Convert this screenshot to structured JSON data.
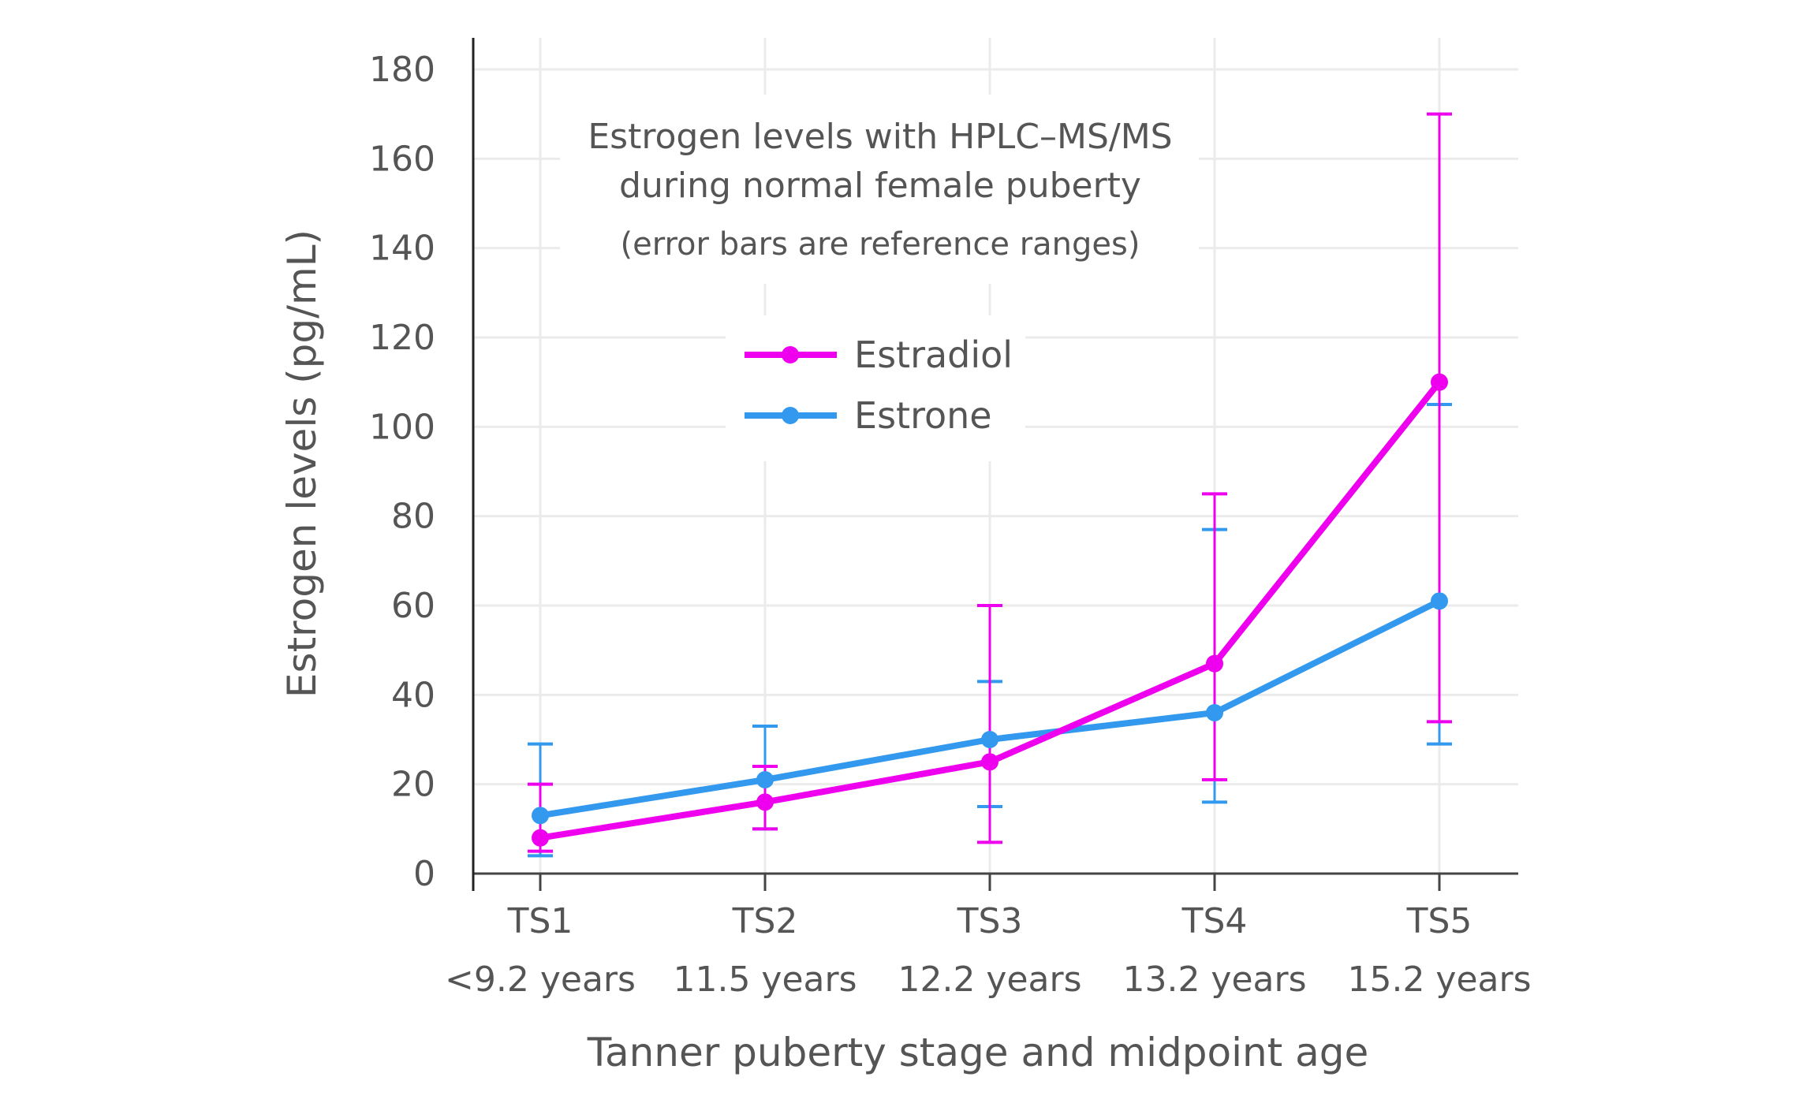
{
  "chart_data": {
    "type": "line",
    "title_lines": [
      "Estrogen levels with HPLC–MS/MS",
      "during normal female puberty"
    ],
    "subtitle": "(error bars are reference ranges)",
    "xlabel": "Tanner puberty stage and midpoint age",
    "ylabel": "Estrogen levels (pg/mL)",
    "categories": [
      "TS1",
      "TS2",
      "TS3",
      "TS4",
      "TS5"
    ],
    "category_sublabels": [
      "<9.2 years",
      "11.5 years",
      "12.2 years",
      "13.2 years",
      "15.2 years"
    ],
    "ylim": [
      0,
      180
    ],
    "yticks": [
      0,
      20,
      40,
      60,
      80,
      100,
      120,
      140,
      160,
      180
    ],
    "grid": true,
    "legend_position": "center-top",
    "series": [
      {
        "name": "Estradiol",
        "color": "#ee00ee",
        "values": [
          8,
          16,
          25,
          47,
          110
        ],
        "error_low": [
          5,
          10,
          7,
          21,
          34
        ],
        "error_high": [
          20,
          24,
          60,
          85,
          170
        ]
      },
      {
        "name": "Estrone",
        "color": "#3399ee",
        "values": [
          13,
          21,
          30,
          36,
          61
        ],
        "error_low": [
          4,
          10,
          15,
          16,
          29
        ],
        "error_high": [
          29,
          33,
          43,
          77,
          105
        ]
      }
    ]
  }
}
